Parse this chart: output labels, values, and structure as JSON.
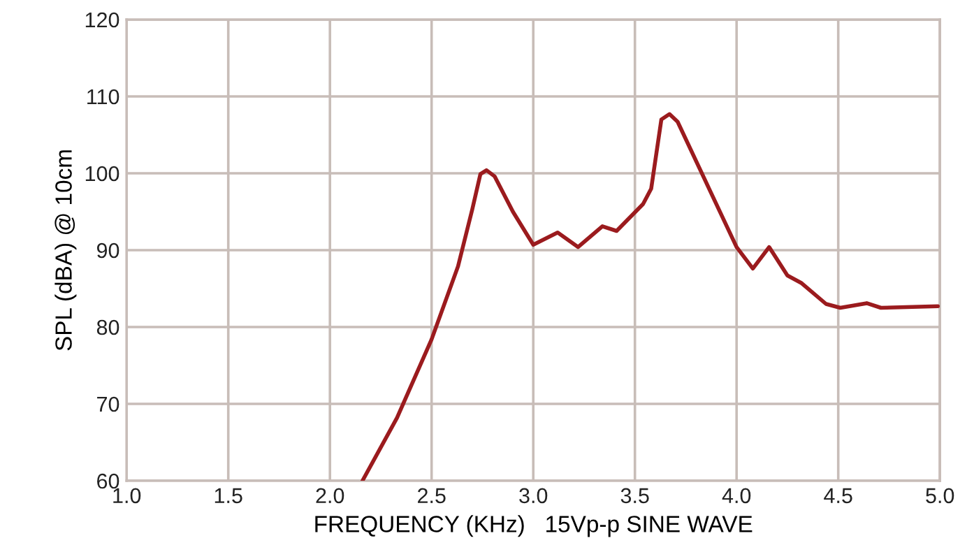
{
  "chart_data": {
    "type": "line",
    "xlabel": "FREQUENCY (KHz)   15Vp-p SINE WAVE",
    "ylabel": "SPL (dBA) @ 10cm",
    "xlim": [
      1.0,
      5.0
    ],
    "ylim": [
      60,
      120
    ],
    "xticks": [
      {
        "value": 1.0,
        "label": "1.0"
      },
      {
        "value": 1.5,
        "label": "1.5"
      },
      {
        "value": 2.0,
        "label": "2.0"
      },
      {
        "value": 2.5,
        "label": "2.5"
      },
      {
        "value": 3.0,
        "label": "3.0"
      },
      {
        "value": 3.5,
        "label": "3.5"
      },
      {
        "value": 4.0,
        "label": "4.0"
      },
      {
        "value": 4.5,
        "label": "4.5"
      },
      {
        "value": 5.0,
        "label": "5.0"
      }
    ],
    "yticks": [
      60,
      70,
      80,
      90,
      100,
      110,
      120
    ],
    "grid": true,
    "marker": "none",
    "line_style": "solid",
    "series": [
      {
        "color": "#9b1b1e",
        "x": [
          2.16,
          2.33,
          2.5,
          2.63,
          2.7,
          2.74,
          2.77,
          2.81,
          2.9,
          3.0,
          3.12,
          3.22,
          3.34,
          3.41,
          3.54,
          3.58,
          3.63,
          3.67,
          3.71,
          4.0,
          4.08,
          4.16,
          4.25,
          4.32,
          4.44,
          4.51,
          4.64,
          4.71,
          4.99
        ],
        "values": [
          60,
          68.2,
          78.4,
          87.9,
          95.3,
          99.9,
          100.4,
          99.6,
          95,
          90.7,
          92.3,
          90.4,
          93.1,
          92.5,
          96,
          98,
          107,
          107.7,
          106.7,
          90.4,
          87.6,
          90.4,
          86.7,
          85.7,
          83,
          82.5,
          83.1,
          82.5,
          82.7
        ]
      }
    ]
  }
}
